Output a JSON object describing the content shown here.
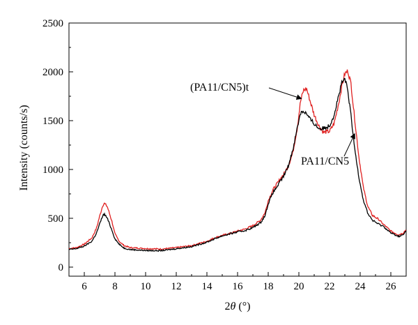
{
  "chart_data": {
    "type": "line",
    "xlabel_prefix": "2",
    "xlabel_symbol": "θ",
    "xlabel_unit": " (°)",
    "ylabel": "Intensity (counts/s)",
    "xlim": [
      5,
      27
    ],
    "ylim": [
      0,
      2500
    ],
    "x_ticks": [
      "6",
      "8",
      "10",
      "12",
      "14",
      "16",
      "18",
      "20",
      "22",
      "24",
      "26"
    ],
    "y_ticks": [
      "0",
      "500",
      "1000",
      "1500",
      "2000",
      "2500"
    ],
    "grid": false,
    "series": [
      {
        "name": "(PA11/CN5)t",
        "color": "#e02020",
        "points": [
          [
            5,
            190
          ],
          [
            5.5,
            200
          ],
          [
            6,
            235
          ],
          [
            6.5,
            300
          ],
          [
            6.8,
            400
          ],
          [
            7,
            520
          ],
          [
            7.2,
            630
          ],
          [
            7.3,
            655
          ],
          [
            7.5,
            620
          ],
          [
            7.8,
            470
          ],
          [
            8,
            340
          ],
          [
            8.3,
            260
          ],
          [
            8.6,
            220
          ],
          [
            9,
            200
          ],
          [
            10,
            190
          ],
          [
            11,
            185
          ],
          [
            12,
            200
          ],
          [
            13,
            220
          ],
          [
            14,
            265
          ],
          [
            14.5,
            300
          ],
          [
            15,
            325
          ],
          [
            15.5,
            345
          ],
          [
            16,
            370
          ],
          [
            16.5,
            390
          ],
          [
            17,
            425
          ],
          [
            17.5,
            480
          ],
          [
            17.8,
            560
          ],
          [
            18,
            680
          ],
          [
            18.3,
            790
          ],
          [
            18.6,
            860
          ],
          [
            19,
            950
          ],
          [
            19.3,
            1030
          ],
          [
            19.6,
            1170
          ],
          [
            19.9,
            1430
          ],
          [
            20.1,
            1690
          ],
          [
            20.3,
            1810
          ],
          [
            20.5,
            1830
          ],
          [
            20.7,
            1720
          ],
          [
            21,
            1560
          ],
          [
            21.3,
            1450
          ],
          [
            21.6,
            1380
          ],
          [
            22,
            1390
          ],
          [
            22.3,
            1470
          ],
          [
            22.6,
            1680
          ],
          [
            22.8,
            1850
          ],
          [
            23,
            1980
          ],
          [
            23.2,
            2010
          ],
          [
            23.4,
            1880
          ],
          [
            23.6,
            1580
          ],
          [
            23.9,
            1150
          ],
          [
            24.2,
            820
          ],
          [
            24.5,
            620
          ],
          [
            24.8,
            530
          ],
          [
            25.2,
            490
          ],
          [
            25.5,
            440
          ],
          [
            26,
            370
          ],
          [
            26.5,
            330
          ],
          [
            26.8,
            350
          ],
          [
            27,
            385
          ]
        ]
      },
      {
        "name": "PA11/CN5",
        "color": "#000000",
        "points": [
          [
            5,
            180
          ],
          [
            5.5,
            190
          ],
          [
            6,
            215
          ],
          [
            6.5,
            265
          ],
          [
            6.8,
            350
          ],
          [
            7,
            440
          ],
          [
            7.2,
            525
          ],
          [
            7.3,
            545
          ],
          [
            7.5,
            500
          ],
          [
            7.8,
            380
          ],
          [
            8,
            290
          ],
          [
            8.3,
            230
          ],
          [
            8.6,
            195
          ],
          [
            9,
            180
          ],
          [
            10,
            170
          ],
          [
            11,
            168
          ],
          [
            12,
            188
          ],
          [
            13,
            210
          ],
          [
            14,
            255
          ],
          [
            14.5,
            290
          ],
          [
            15,
            320
          ],
          [
            15.5,
            340
          ],
          [
            16,
            360
          ],
          [
            16.5,
            375
          ],
          [
            17,
            405
          ],
          [
            17.5,
            455
          ],
          [
            17.8,
            530
          ],
          [
            18,
            650
          ],
          [
            18.3,
            760
          ],
          [
            18.6,
            830
          ],
          [
            19,
            930
          ],
          [
            19.3,
            1030
          ],
          [
            19.6,
            1200
          ],
          [
            19.9,
            1430
          ],
          [
            20.1,
            1580
          ],
          [
            20.3,
            1600
          ],
          [
            20.5,
            1570
          ],
          [
            20.7,
            1520
          ],
          [
            21,
            1470
          ],
          [
            21.3,
            1420
          ],
          [
            21.6,
            1420
          ],
          [
            22,
            1450
          ],
          [
            22.3,
            1560
          ],
          [
            22.6,
            1760
          ],
          [
            22.8,
            1880
          ],
          [
            23,
            1930
          ],
          [
            23.2,
            1800
          ],
          [
            23.4,
            1550
          ],
          [
            23.6,
            1260
          ],
          [
            23.9,
            940
          ],
          [
            24.2,
            690
          ],
          [
            24.5,
            550
          ],
          [
            24.8,
            480
          ],
          [
            25.2,
            440
          ],
          [
            25.5,
            420
          ],
          [
            26,
            350
          ],
          [
            26.5,
            315
          ],
          [
            26.8,
            330
          ],
          [
            27,
            370
          ]
        ]
      }
    ],
    "annotations": [
      {
        "text": "(PA11/CN5)t",
        "target": [
          20.3,
          1740
        ]
      },
      {
        "text": "PA11/CN5",
        "target": [
          23.6,
          1380
        ]
      }
    ]
  }
}
